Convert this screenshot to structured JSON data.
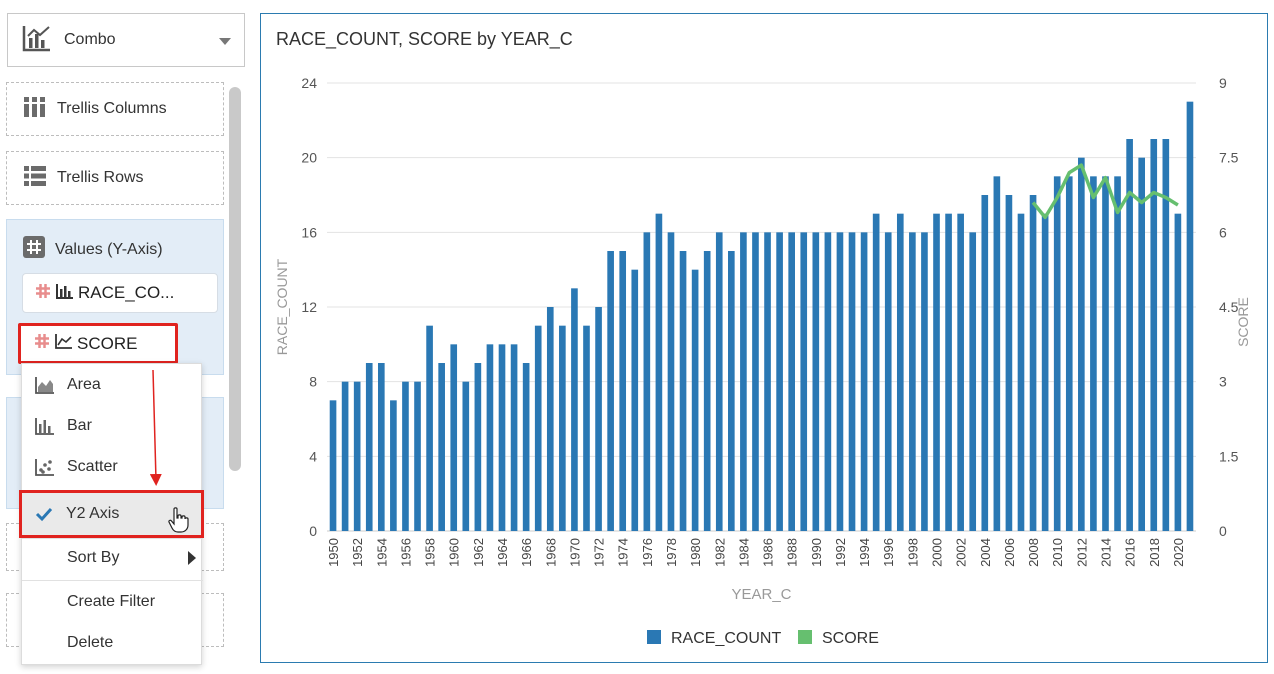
{
  "left_panel": {
    "chart_type_select": {
      "label": "Combo",
      "icon": "combo-chart-icon"
    },
    "trellis_columns": {
      "label": "Trellis Columns",
      "icon": "trellis-columns-icon"
    },
    "trellis_rows": {
      "label": "Trellis Rows",
      "icon": "trellis-rows-icon"
    },
    "values_section": {
      "label": "Values (Y-Axis)",
      "icon": "hash-icon",
      "items": [
        {
          "label": "RACE_CO...",
          "type_icon": "bar-chart-icon"
        },
        {
          "label": "SCORE",
          "type_icon": "line-chart-icon"
        }
      ]
    },
    "context_menu": {
      "items": [
        {
          "label": "Area",
          "icon": "area-chart-icon"
        },
        {
          "label": "Bar",
          "icon": "bar-chart-icon"
        },
        {
          "label": "Scatter",
          "icon": "scatter-chart-icon"
        },
        {
          "label": "Y2 Axis",
          "icon": "check-icon",
          "checked": true
        },
        {
          "label": "Sort By",
          "icon": "submenu-arrow-icon"
        },
        {
          "label": "Create Filter"
        },
        {
          "label": "Delete"
        }
      ]
    }
  },
  "colors": {
    "bar": "#2a78b4",
    "line": "#66bf6f",
    "annotation": "#e0231f",
    "panel_border": "#2b7bb0"
  },
  "chart_data": {
    "type": "bar",
    "title": "RACE_COUNT, SCORE by YEAR_C",
    "xlabel": "YEAR_C",
    "ylabel": "RACE_COUNT",
    "y2label": "SCORE",
    "ylim": [
      0,
      24
    ],
    "y2lim": [
      0,
      9
    ],
    "yticks": [
      "0",
      "4",
      "8",
      "12",
      "16",
      "20",
      "24"
    ],
    "y2ticks": [
      "0",
      "1.5",
      "3",
      "4.5",
      "6",
      "7.5",
      "9"
    ],
    "grid": true,
    "legend_position": "bottom",
    "x_tick_labels": [
      "1950",
      "1952",
      "1954",
      "1956",
      "1958",
      "1960",
      "1962",
      "1964",
      "1966",
      "1968",
      "1970",
      "1972",
      "1974",
      "1976",
      "1978",
      "1980",
      "1982",
      "1984",
      "1986",
      "1988",
      "1990",
      "1992",
      "1994",
      "1996",
      "1998",
      "2000",
      "2002",
      "2004",
      "2006",
      "2008",
      "2010",
      "2012",
      "2014",
      "2016",
      "2018",
      "2020"
    ],
    "x": [
      1950,
      1951,
      1952,
      1953,
      1954,
      1955,
      1956,
      1957,
      1958,
      1959,
      1960,
      1961,
      1962,
      1963,
      1964,
      1965,
      1966,
      1967,
      1968,
      1969,
      1970,
      1971,
      1972,
      1973,
      1974,
      1975,
      1976,
      1977,
      1978,
      1979,
      1980,
      1981,
      1982,
      1983,
      1984,
      1985,
      1986,
      1987,
      1988,
      1989,
      1990,
      1991,
      1992,
      1993,
      1994,
      1995,
      1996,
      1997,
      1998,
      1999,
      2000,
      2001,
      2002,
      2003,
      2004,
      2005,
      2006,
      2007,
      2008,
      2009,
      2010,
      2011,
      2012,
      2013,
      2014,
      2015,
      2016,
      2017,
      2018,
      2019,
      2020,
      2021
    ],
    "series": [
      {
        "name": "RACE_COUNT",
        "type": "bar",
        "axis": "y",
        "values": [
          7,
          8,
          8,
          9,
          9,
          7,
          8,
          8,
          11,
          9,
          10,
          8,
          9,
          10,
          10,
          10,
          9,
          11,
          12,
          11,
          13,
          11,
          12,
          15,
          15,
          14,
          16,
          17,
          16,
          15,
          14,
          15,
          16,
          15,
          16,
          16,
          16,
          16,
          16,
          16,
          16,
          16,
          16,
          16,
          16,
          17,
          16,
          17,
          16,
          16,
          17,
          17,
          17,
          16,
          18,
          19,
          18,
          17,
          18,
          17,
          19,
          19,
          20,
          19,
          19,
          19,
          21,
          20,
          21,
          21,
          17,
          23
        ]
      },
      {
        "name": "SCORE",
        "type": "line",
        "axis": "y2",
        "x": [
          2008,
          2009,
          2010,
          2011,
          2012,
          2013,
          2014,
          2015,
          2016,
          2017,
          2018,
          2019,
          2020
        ],
        "values": [
          6.6,
          6.3,
          6.7,
          7.2,
          7.35,
          6.7,
          7.1,
          6.4,
          6.8,
          6.6,
          6.8,
          6.7,
          6.55
        ]
      }
    ]
  }
}
